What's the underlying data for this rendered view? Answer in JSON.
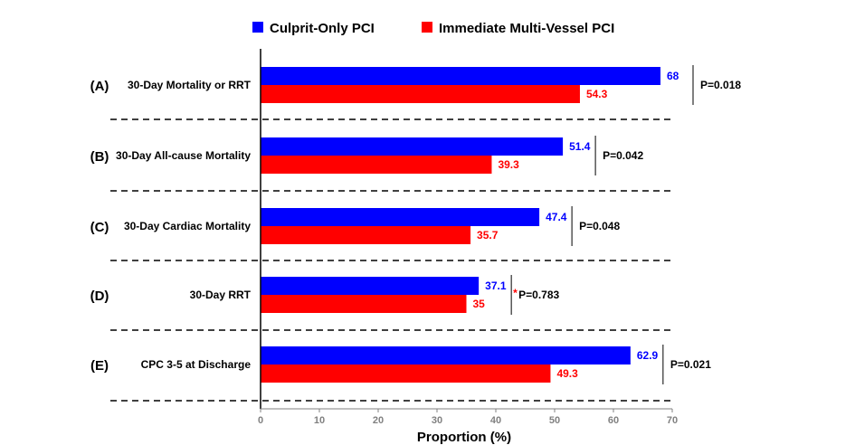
{
  "chart_data": {
    "type": "bar",
    "orientation": "horizontal",
    "categories": [
      {
        "panel": "(A)",
        "label": "30-Day Mortality or RRT",
        "p_value": "P=0.018",
        "marker": ""
      },
      {
        "panel": "(B)",
        "label": "30-Day All-cause Mortality",
        "p_value": "P=0.042",
        "marker": ""
      },
      {
        "panel": "(C)",
        "label": "30-Day Cardiac Mortality",
        "p_value": "P=0.048",
        "marker": ""
      },
      {
        "panel": "(D)",
        "label": "30-Day RRT",
        "p_value": "P=0.783",
        "marker": "*"
      },
      {
        "panel": "(E)",
        "label": "CPC 3-5 at Discharge",
        "p_value": "P=0.021",
        "marker": ""
      }
    ],
    "series": [
      {
        "name": "Culprit-Only PCI",
        "color": "#0000ff",
        "values": [
          68,
          51.4,
          47.4,
          37.1,
          62.9
        ],
        "labels": [
          "68",
          "51.4",
          "47.4",
          "37.1",
          "62.9"
        ]
      },
      {
        "name": "Immediate Multi-Vessel PCI",
        "color": "#ff0000",
        "values": [
          54.3,
          39.3,
          35.7,
          35,
          49.3
        ],
        "labels": [
          "54.3",
          "39.3",
          "35.7",
          "35",
          "49.3"
        ]
      }
    ],
    "xlabel": "Proportion (%)",
    "xlim": [
      0,
      70
    ],
    "xticks": [
      "0",
      "10",
      "20",
      "30",
      "40",
      "50",
      "60",
      "70"
    ],
    "legend_position": "top-center",
    "separators": "dashed",
    "marker_color": "#ff0000"
  }
}
